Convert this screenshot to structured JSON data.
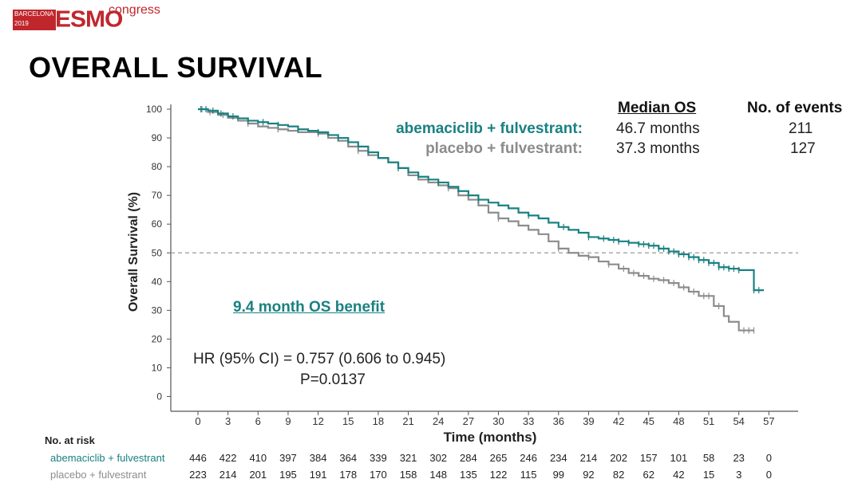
{
  "logo": {
    "city": "BARCELONA",
    "year": "2019",
    "brand": "ESMO",
    "suffix": "congress"
  },
  "slide_title": "OVERALL SURVIVAL",
  "legend": {
    "median_header": "Median OS",
    "events_header": "No. of events",
    "rows": [
      {
        "name": "abemaciclib + fulvestrant:",
        "median": "46.7 months",
        "events": "211"
      },
      {
        "name": "placebo + fulvestrant:",
        "median": "37.3 months",
        "events": "127"
      }
    ]
  },
  "annotations": {
    "benefit": "9.4 month OS benefit",
    "hr": "HR (95% CI) =  0.757 (0.606 to 0.945)",
    "p": "P=0.0137"
  },
  "colors": {
    "abemaciclib": "#1a8181",
    "placebo": "#8c8c8c",
    "reference_line": "#999999"
  },
  "risk_table": {
    "title": "No. at risk",
    "rows": [
      {
        "label": "abemaciclib + fulvestrant",
        "values": [
          "446",
          "422",
          "410",
          "397",
          "384",
          "364",
          "339",
          "321",
          "302",
          "284",
          "265",
          "246",
          "234",
          "214",
          "202",
          "157",
          "101",
          "58",
          "23",
          "0"
        ]
      },
      {
        "label": "placebo + fulvestrant",
        "values": [
          "223",
          "214",
          "201",
          "195",
          "191",
          "178",
          "170",
          "158",
          "148",
          "135",
          "122",
          "115",
          "99",
          "92",
          "82",
          "62",
          "42",
          "15",
          "3",
          "0"
        ]
      }
    ]
  },
  "chart_data": {
    "type": "line",
    "title": "OVERALL SURVIVAL",
    "xlabel": "Time (months)",
    "ylabel": "Overall Survival (%)",
    "xlim": [
      0,
      57
    ],
    "ylim": [
      0,
      100
    ],
    "xticks": [
      0,
      3,
      6,
      9,
      12,
      15,
      18,
      21,
      24,
      27,
      30,
      33,
      36,
      39,
      42,
      45,
      48,
      51,
      54,
      57
    ],
    "yticks": [
      0,
      10,
      20,
      30,
      40,
      50,
      60,
      70,
      80,
      90,
      100
    ],
    "reference_line_y": 50,
    "grid": false,
    "series": [
      {
        "name": "abemaciclib + fulvestrant",
        "x": [
          0,
          1,
          2,
          3,
          4,
          5,
          6,
          7,
          8,
          9,
          10,
          11,
          12,
          13,
          14,
          15,
          16,
          17,
          18,
          19,
          20,
          21,
          22,
          23,
          24,
          25,
          26,
          27,
          28,
          29,
          30,
          31,
          32,
          33,
          34,
          35,
          36,
          37,
          38,
          39,
          40,
          41,
          42,
          43,
          44,
          45,
          46,
          47,
          48,
          49,
          50,
          51,
          52,
          53,
          54,
          55,
          55.5,
          56.5
        ],
        "y": [
          100,
          99.5,
          98.5,
          97.5,
          96.8,
          96,
          95.5,
          95,
          94.5,
          94,
          93,
          92.5,
          92,
          91,
          90,
          88.5,
          87,
          85,
          83,
          81.5,
          79.5,
          78,
          76.5,
          75.5,
          74.5,
          73,
          71.5,
          70,
          68.5,
          67.5,
          66.5,
          65.5,
          64,
          63,
          62,
          60.5,
          59,
          58,
          57,
          55.5,
          55,
          54.5,
          54,
          53.5,
          53,
          52.5,
          51.5,
          50.5,
          49.5,
          48.5,
          47.5,
          46.5,
          45,
          44.5,
          44,
          44,
          37,
          37
        ],
        "censor_x": [
          0.3,
          0.8,
          1.5,
          2.3,
          3.5,
          5,
          6.5,
          8,
          10,
          12,
          14,
          17,
          20,
          24,
          28,
          33,
          36.5,
          39,
          40.5,
          41.5,
          42,
          43,
          44,
          44.5,
          45,
          45.5,
          46,
          46.5,
          47,
          47.5,
          48,
          48.5,
          49,
          49.5,
          50,
          50.5,
          51,
          51.5,
          52,
          52.5,
          53,
          53.5,
          54,
          55.5,
          56
        ]
      },
      {
        "name": "placebo + fulvestrant",
        "x": [
          0,
          1,
          2,
          3,
          4,
          5,
          6,
          7,
          8,
          9,
          10,
          11,
          12,
          13,
          14,
          15,
          16,
          17,
          18,
          19,
          20,
          21,
          22,
          23,
          24,
          25,
          26,
          27,
          28,
          29,
          30,
          31,
          32,
          33,
          34,
          35,
          36,
          37,
          38,
          39,
          40,
          41,
          42,
          43,
          44,
          45,
          46,
          47,
          48,
          49,
          50,
          51,
          51.5,
          52,
          52.5,
          53,
          54,
          54.3,
          55.5
        ],
        "y": [
          100,
          99,
          98,
          97,
          96,
          95,
          94,
          93.5,
          93,
          92.5,
          92,
          92,
          91.5,
          90,
          89,
          87,
          85.5,
          84,
          83,
          81.5,
          79.5,
          77,
          75.5,
          74.5,
          73.5,
          72.5,
          70,
          68.5,
          66.5,
          64,
          62,
          61,
          59.5,
          58,
          56.5,
          54,
          51.5,
          50,
          49,
          48.5,
          47,
          46,
          44.5,
          43,
          42,
          41,
          40.5,
          39.5,
          38,
          36.5,
          35,
          35,
          31.5,
          31.5,
          28,
          26,
          23,
          23,
          23
        ],
        "censor_x": [
          0.4,
          1.2,
          2.5,
          5,
          8,
          12,
          16,
          20,
          25,
          30,
          36,
          39,
          41,
          42.5,
          43.5,
          44.5,
          45.5,
          46.5,
          47.5,
          48.5,
          49.5,
          50.5,
          51,
          52,
          54.5,
          55,
          55.5
        ]
      }
    ]
  }
}
